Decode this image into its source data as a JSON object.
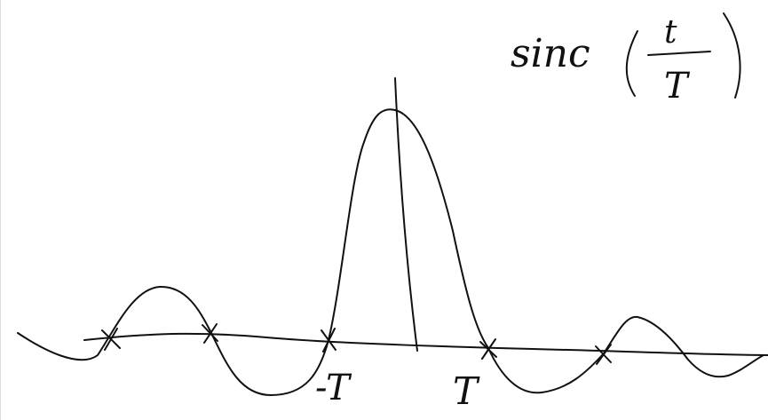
{
  "formula": {
    "function": "sinc",
    "numerator": "t",
    "denominator": "T"
  },
  "axis_labels": [
    "-T",
    "T"
  ]
}
